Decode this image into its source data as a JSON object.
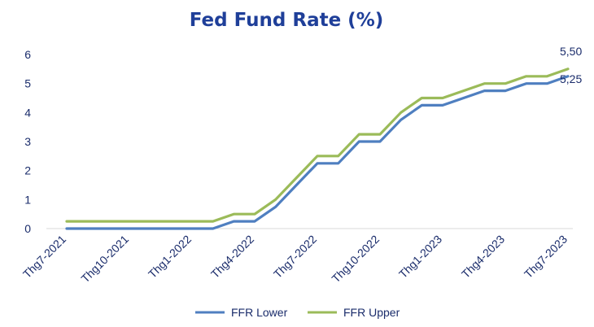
{
  "chart_data": {
    "type": "line",
    "title": "Fed Fund Rate (%)",
    "xlabel": "",
    "ylabel": "",
    "ylim": [
      0,
      6
    ],
    "yticks": [
      "0",
      "1",
      "2",
      "3",
      "4",
      "5",
      "6"
    ],
    "xtick_labels": [
      "Thg7-2021",
      "Thg10-2021",
      "Thg1-2022",
      "Thg4-2022",
      "Thg7-2022",
      "Thg10-2022",
      "Thg1-2023",
      "Thg4-2023",
      "Thg7-2023"
    ],
    "x": [
      "2021-07",
      "2021-08",
      "2021-09",
      "2021-10",
      "2021-11",
      "2021-12",
      "2022-01",
      "2022-02",
      "2022-03",
      "2022-04",
      "2022-05",
      "2022-06",
      "2022-07",
      "2022-08",
      "2022-09",
      "2022-10",
      "2022-11",
      "2022-12",
      "2023-01",
      "2023-02",
      "2023-03",
      "2023-04",
      "2023-05",
      "2023-06",
      "2023-07"
    ],
    "series": [
      {
        "name": "FFR Lower",
        "color": "#4f7fc0",
        "values": [
          0,
          0,
          0,
          0,
          0,
          0,
          0,
          0,
          0.25,
          0.25,
          0.75,
          1.5,
          2.25,
          2.25,
          3,
          3,
          3.75,
          4.25,
          4.25,
          4.5,
          4.75,
          4.75,
          5,
          5,
          5.25
        ]
      },
      {
        "name": "FFR Upper",
        "color": "#9bbb59",
        "values": [
          0.25,
          0.25,
          0.25,
          0.25,
          0.25,
          0.25,
          0.25,
          0.25,
          0.5,
          0.5,
          1,
          1.75,
          2.5,
          2.5,
          3.25,
          3.25,
          4,
          4.5,
          4.5,
          4.75,
          5,
          5,
          5.25,
          5.25,
          5.5
        ]
      }
    ],
    "data_labels": [
      {
        "series": "FFR Upper",
        "text": "5,50"
      },
      {
        "series": "FFR Lower",
        "text": "5,25"
      }
    ],
    "grid": false,
    "legend": "bottom"
  }
}
